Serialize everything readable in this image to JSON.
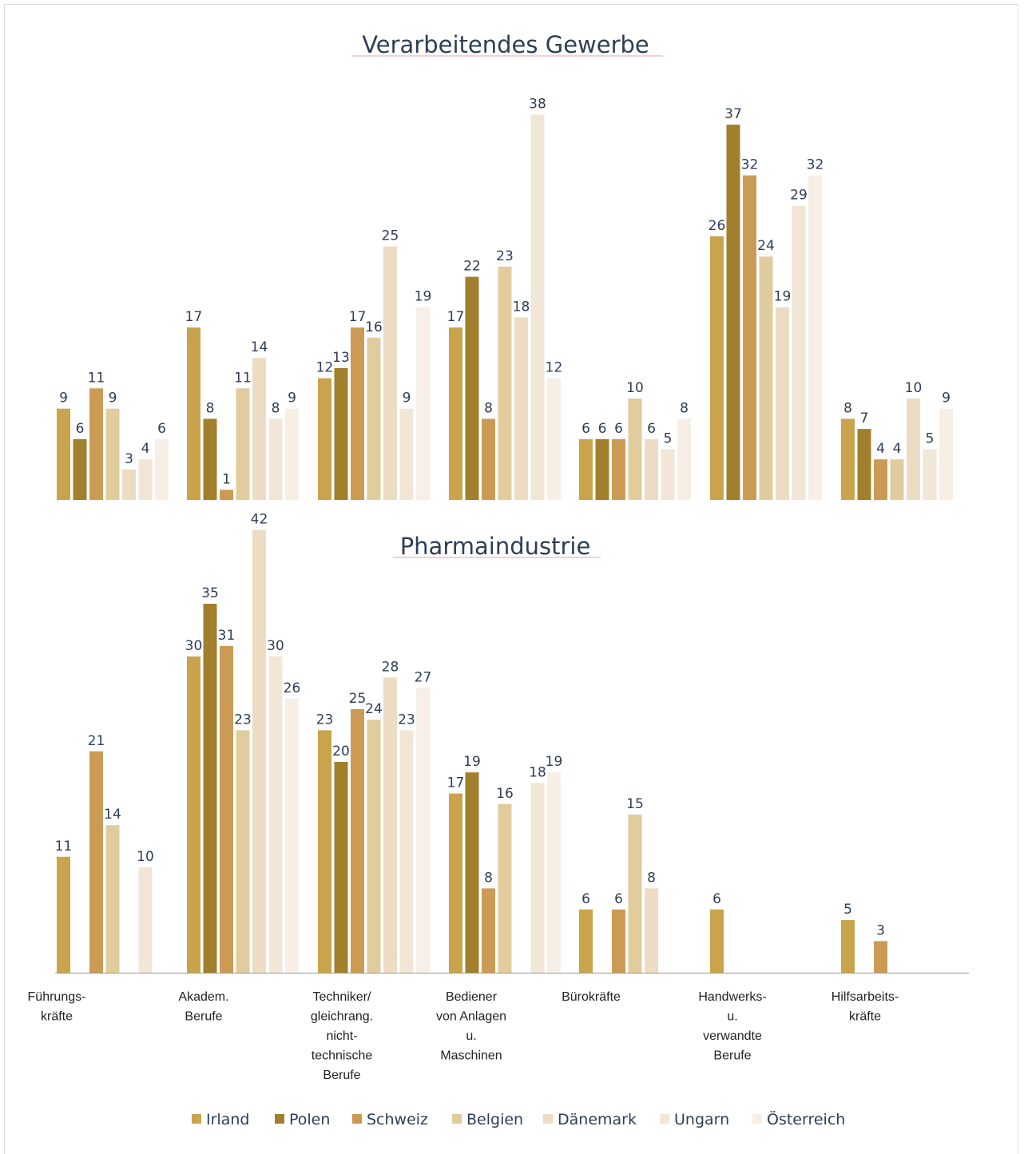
{
  "colors": {
    "series": [
      "#c9a44d",
      "#a17f2d",
      "#cb9b55",
      "#e0cc9c",
      "#ecdcc3",
      "#f2e6d7",
      "#f7efe6"
    ],
    "text": "#2e3e56",
    "title_underline": "#e8a0a8",
    "axis": "#9a9a9a"
  },
  "chart_data": {
    "type": "bar",
    "legend_position": "bottom",
    "categories": [
      "Führungs-\nkräfte",
      "Akadem.\nBerufe",
      "Techniker/\ngleichrang.\nnicht-\ntechnische\nBerufe",
      "Bediener\nvon Anlagen\nu.\nMaschinen",
      "Bürokräfte",
      "Handwerks-\nu.\nverwandte\nBerufe",
      "Hilfsarbeits-\nkräfte"
    ],
    "series_names": [
      "Irland",
      "Polen",
      "Schweiz",
      "Belgien",
      "Dänemark",
      "Ungarn",
      "Österreich"
    ],
    "charts": [
      {
        "title": "Verarbeitendes Gewerbe",
        "series": [
          {
            "name": "Irland",
            "values": [
              9,
              17,
              12,
              17,
              6,
              26,
              8
            ]
          },
          {
            "name": "Polen",
            "values": [
              6,
              8,
              13,
              22,
              6,
              37,
              7
            ]
          },
          {
            "name": "Schweiz",
            "values": [
              11,
              1,
              17,
              8,
              6,
              32,
              4
            ]
          },
          {
            "name": "Belgien",
            "values": [
              9,
              11,
              16,
              23,
              10,
              24,
              4
            ]
          },
          {
            "name": "Dänemark",
            "values": [
              3,
              14,
              25,
              18,
              6,
              19,
              10
            ]
          },
          {
            "name": "Ungarn",
            "values": [
              4,
              8,
              9,
              38,
              5,
              29,
              5
            ]
          },
          {
            "name": "Österreich",
            "values": [
              6,
              9,
              19,
              12,
              8,
              32,
              9
            ]
          }
        ]
      },
      {
        "title": "Pharmaindustrie",
        "series": [
          {
            "name": "Irland",
            "values": [
              11,
              30,
              23,
              17,
              6,
              6,
              5
            ]
          },
          {
            "name": "Polen",
            "values": [
              null,
              35,
              20,
              19,
              null,
              null,
              null
            ]
          },
          {
            "name": "Schweiz",
            "values": [
              21,
              31,
              25,
              8,
              6,
              null,
              3
            ]
          },
          {
            "name": "Belgien",
            "values": [
              14,
              23,
              24,
              16,
              15,
              null,
              null
            ]
          },
          {
            "name": "Dänemark",
            "values": [
              null,
              42,
              28,
              null,
              8,
              null,
              null
            ]
          },
          {
            "name": "Ungarn",
            "values": [
              10,
              30,
              23,
              18,
              null,
              null,
              null
            ]
          },
          {
            "name": "Österreich",
            "values": [
              null,
              26,
              27,
              19,
              null,
              null,
              null
            ]
          }
        ]
      }
    ]
  }
}
